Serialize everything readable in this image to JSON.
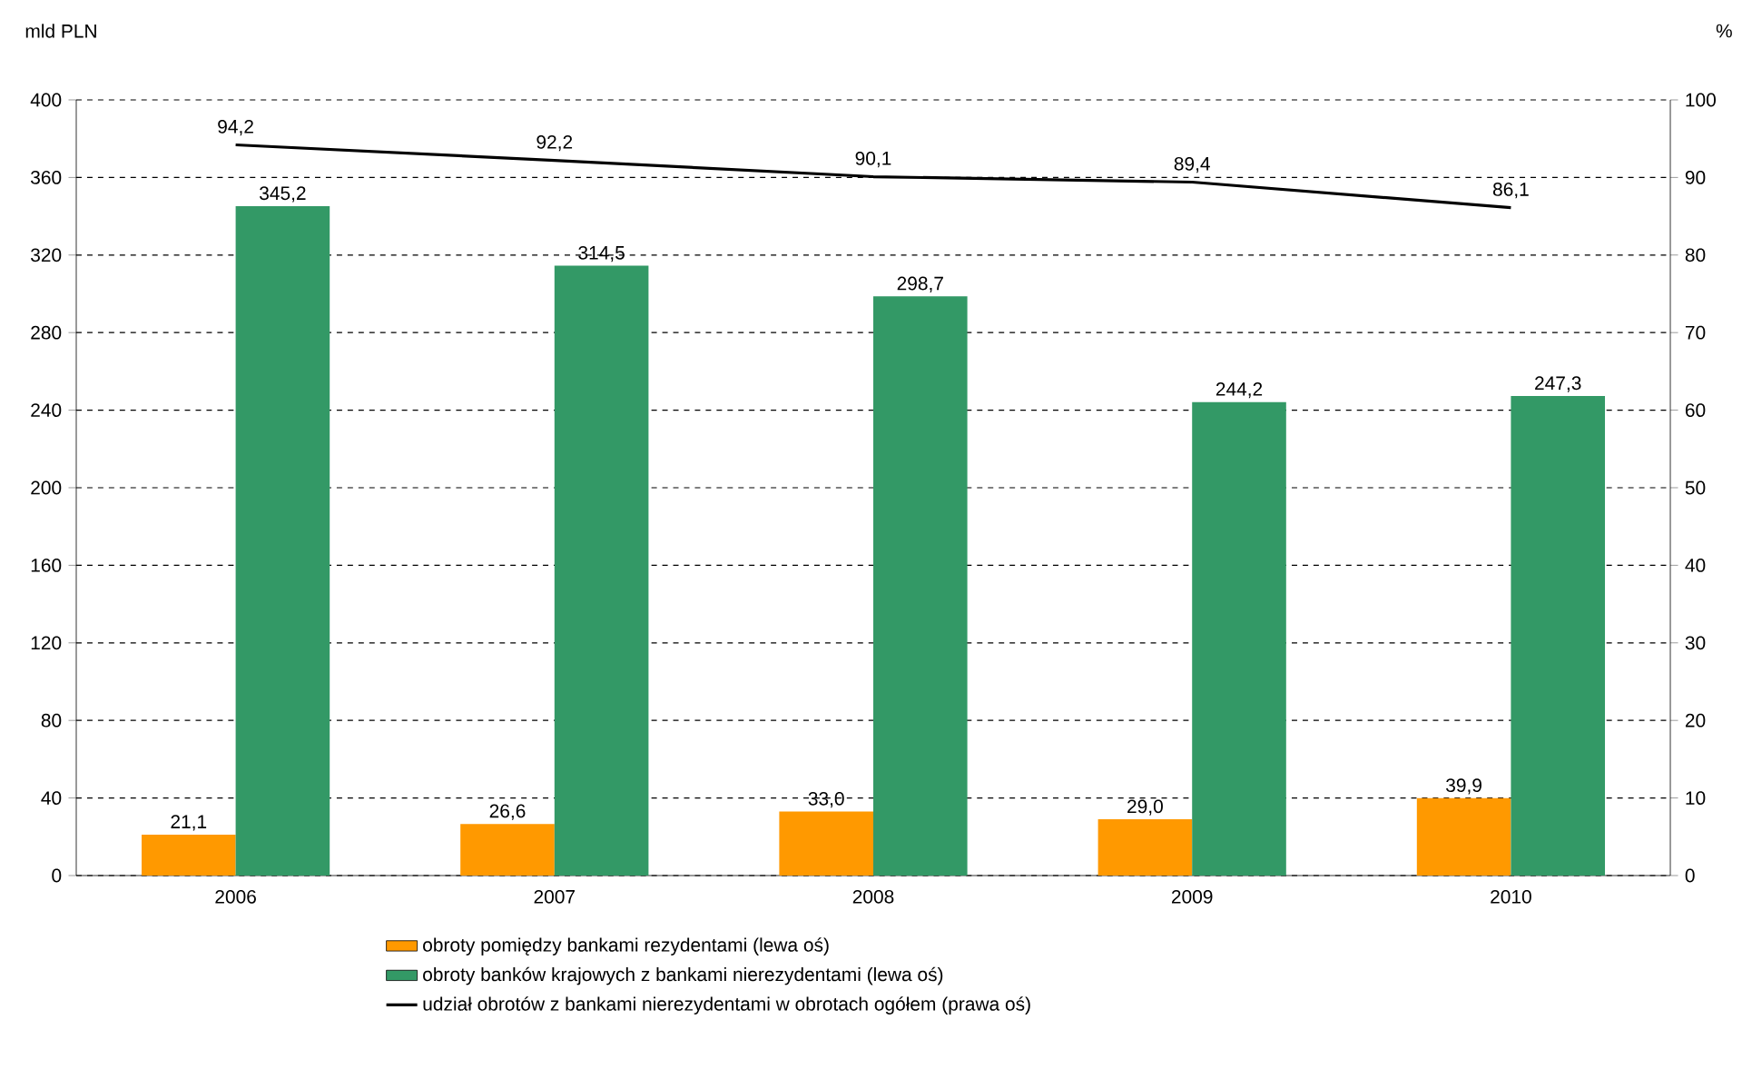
{
  "chart_data": {
    "type": "bar",
    "categories": [
      "2006",
      "2007",
      "2008",
      "2009",
      "2010"
    ],
    "ylabel": "mld PLN",
    "y2label": "%",
    "ylim": [
      0,
      400
    ],
    "yticks": [
      0,
      40,
      80,
      120,
      160,
      200,
      240,
      280,
      320,
      360,
      400
    ],
    "y2lim": [
      0,
      100
    ],
    "y2ticks": [
      0,
      10,
      20,
      30,
      40,
      50,
      60,
      70,
      80,
      90,
      100
    ],
    "grid": "y",
    "legend": "bottom",
    "series": [
      {
        "name": "obroty pomiędzy bankami rezydentami (lewa oś)",
        "color": "#ff9900",
        "values": [
          21.1,
          26.6,
          33.0,
          29.0,
          39.9
        ],
        "value_labels": [
          "21,1",
          "26,6",
          "33,0",
          "29,0",
          "39,9"
        ]
      },
      {
        "name": "obroty banków krajowych z bankami nierezydentami (lewa oś)",
        "color": "#339966",
        "values": [
          345.2,
          314.5,
          298.7,
          244.2,
          247.3
        ],
        "value_labels": [
          "345,2",
          "314,5",
          "298,7",
          "244,2",
          "247,3"
        ]
      },
      {
        "name": "udział obrotów z bankami nierezydentami w obrotach ogółem (prawa oś)",
        "type": "line",
        "axis": "y2",
        "line_style": "solid",
        "color": "#000000",
        "values": [
          94.2,
          92.2,
          90.1,
          89.4,
          86.1
        ],
        "value_labels": [
          "94,2",
          "92,2",
          "90,1",
          "89,4",
          "86,1"
        ]
      }
    ]
  }
}
